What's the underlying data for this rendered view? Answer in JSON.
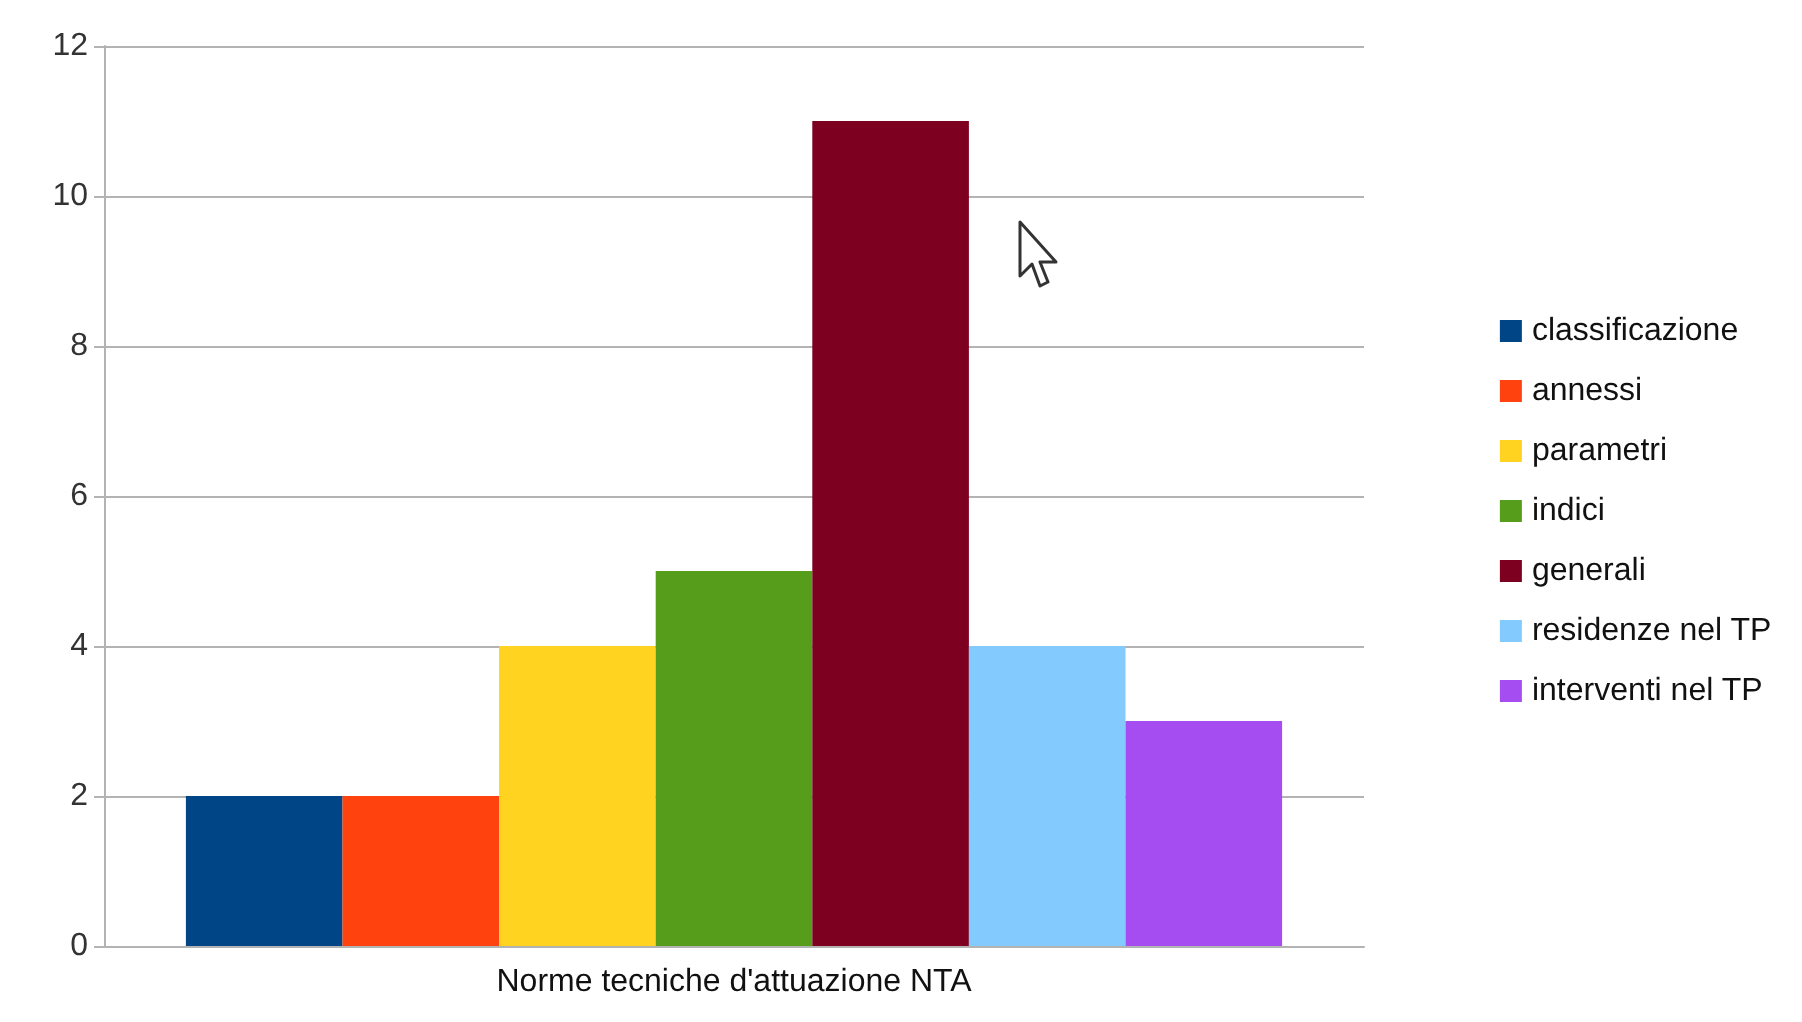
{
  "chart_data": {
    "type": "bar",
    "categories": [
      "Norme tecniche d'attuazione NTA"
    ],
    "series": [
      {
        "name": "classificazione",
        "color": "#004586",
        "values": [
          2
        ]
      },
      {
        "name": "annessi",
        "color": "#ff420e",
        "values": [
          2
        ]
      },
      {
        "name": "parametri",
        "color": "#ffd320",
        "values": [
          4
        ]
      },
      {
        "name": "indici",
        "color": "#579d1c",
        "values": [
          5
        ]
      },
      {
        "name": "generali",
        "color": "#7e0021",
        "values": [
          11
        ]
      },
      {
        "name": "residenze nel TP",
        "color": "#83caff",
        "values": [
          4
        ]
      },
      {
        "name": "interventi nel TP",
        "color": "#a64df2",
        "values": [
          3
        ]
      }
    ],
    "ylim": [
      0,
      12
    ],
    "yticks": [
      0,
      2,
      4,
      6,
      8,
      10,
      12
    ],
    "grid": "y",
    "legend": "right"
  }
}
